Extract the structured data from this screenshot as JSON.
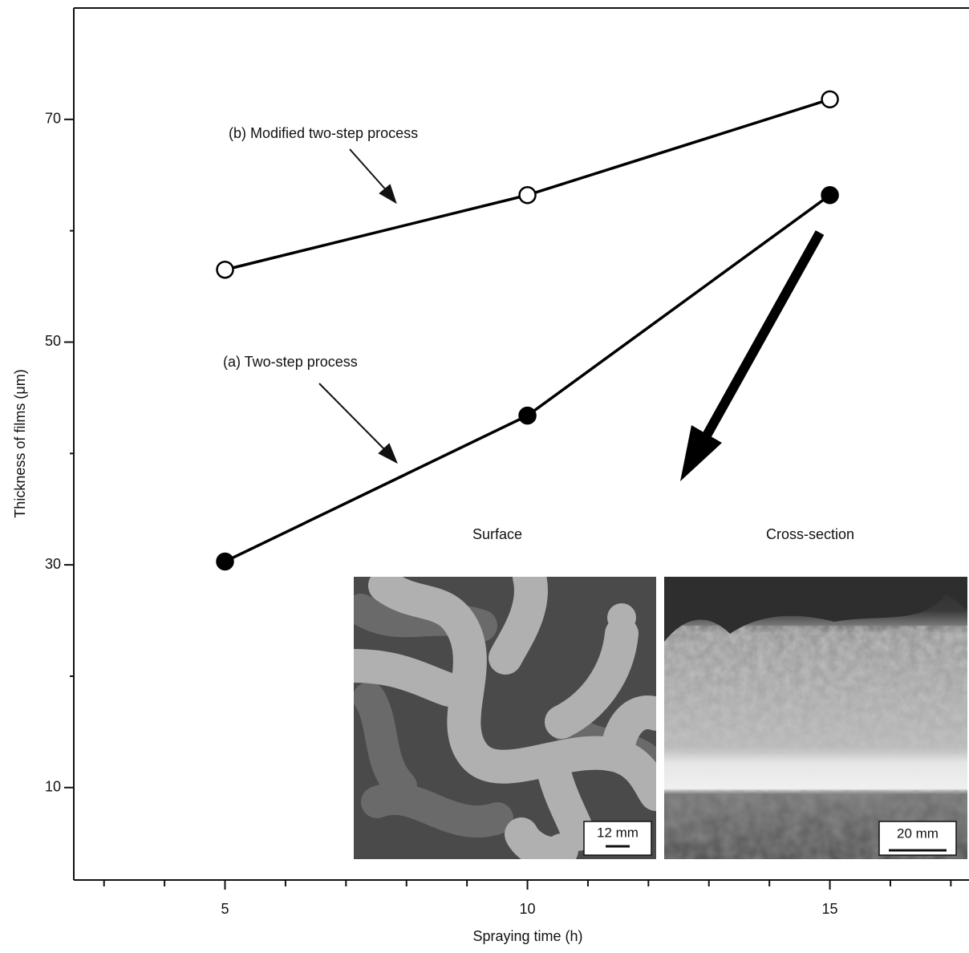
{
  "chart_data": {
    "type": "line",
    "x_label": "Spraying time (h)",
    "y_label": "Thickness of films (μm)",
    "xlim": [
      2.5,
      17.3
    ],
    "ylim": [
      1.7,
      80
    ],
    "xticks": [
      5,
      10,
      15
    ],
    "yticks": [
      10,
      30,
      50,
      70
    ],
    "x_minor_ticks": [
      3,
      4,
      6,
      7,
      8,
      9,
      11,
      12,
      13,
      14,
      16,
      17
    ],
    "y_minor_ticks": [
      20,
      40,
      60
    ],
    "x": [
      5,
      10,
      15
    ],
    "series": [
      {
        "name": "(b) Modified two-step process",
        "marker": "open",
        "color": "#000000",
        "values": [
          56.5,
          63.2,
          71.8
        ]
      },
      {
        "name": "(a) Two-step process",
        "marker": "filled",
        "color": "#000000",
        "values": [
          30.3,
          43.4,
          63.2
        ]
      }
    ],
    "inset": [
      {
        "title": "Surface",
        "scale_bar": "12 mm"
      },
      {
        "title": "Cross-section",
        "scale_bar": "20 mm"
      }
    ]
  }
}
